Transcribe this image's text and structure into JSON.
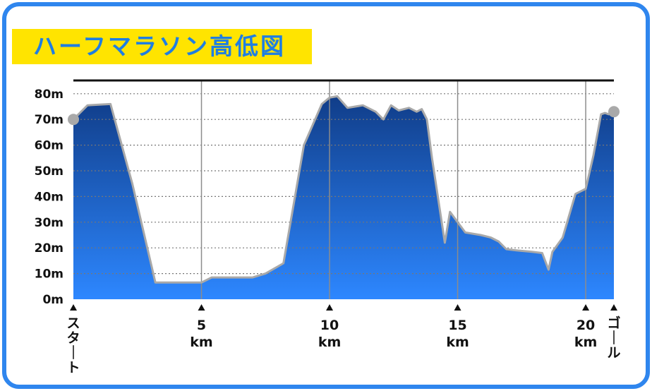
{
  "title": "ハーフマラソン高低図",
  "colors": {
    "frame": "#2f86ee",
    "title_bg": "#ffe400",
    "title_text": "#1f7ee2",
    "area_top": "#103c87",
    "area_bottom": "#2d87ff",
    "line": "#a9a9a9",
    "grid": "#888888"
  },
  "chart_data": {
    "type": "area",
    "title": "ハーフマラソン高低図",
    "xlabel": "",
    "ylabel": "",
    "xlim": [
      0,
      21.1
    ],
    "ylim": [
      0,
      85
    ],
    "yticks": [
      0,
      10,
      20,
      30,
      40,
      50,
      60,
      70,
      80
    ],
    "ytick_labels": [
      "0m",
      "10m",
      "20m",
      "30m",
      "40m",
      "50m",
      "60m",
      "70m",
      "80m"
    ],
    "xticks": [
      {
        "x": 0,
        "label": "スタート",
        "unit": ""
      },
      {
        "x": 5,
        "label": "5",
        "unit": "km"
      },
      {
        "x": 10,
        "label": "10",
        "unit": "km"
      },
      {
        "x": 15,
        "label": "15",
        "unit": "km"
      },
      {
        "x": 20,
        "label": "20",
        "unit": "km"
      },
      {
        "x": 21.1,
        "label": "ゴール",
        "unit": ""
      }
    ],
    "grid": true,
    "series": [
      {
        "x": [
          0,
          0.55,
          1.45,
          2.3,
          3.2,
          4,
          5,
          5.4,
          6,
          7,
          7.5,
          8.2,
          9,
          9.35,
          9.7,
          10,
          10.3,
          10.7,
          11.3,
          11.8,
          12.1,
          12.4,
          12.7,
          13.1,
          13.4,
          13.6,
          13.8,
          14,
          14.5,
          14.7,
          15.3,
          15.9,
          16.3,
          16.6,
          16.9,
          17.3,
          17.9,
          18.3,
          18.55,
          18.7,
          19.1,
          19.6,
          20,
          20.3,
          20.6,
          20.75,
          20.9,
          21.1
        ],
        "y": [
          70,
          75.5,
          76,
          45,
          6.5,
          6.5,
          6.5,
          8.5,
          8.5,
          8.5,
          10,
          14,
          60,
          68,
          76,
          78.5,
          79,
          74.5,
          75.5,
          73,
          70,
          75.5,
          73.5,
          74.5,
          73,
          74,
          70,
          55,
          22,
          34,
          26,
          25,
          24,
          22.5,
          19.5,
          19,
          18.5,
          18,
          11.5,
          18.5,
          24,
          41,
          43,
          56,
          72,
          72.5,
          72,
          73
        ]
      }
    ],
    "endpoints": [
      0,
      21.1
    ]
  }
}
